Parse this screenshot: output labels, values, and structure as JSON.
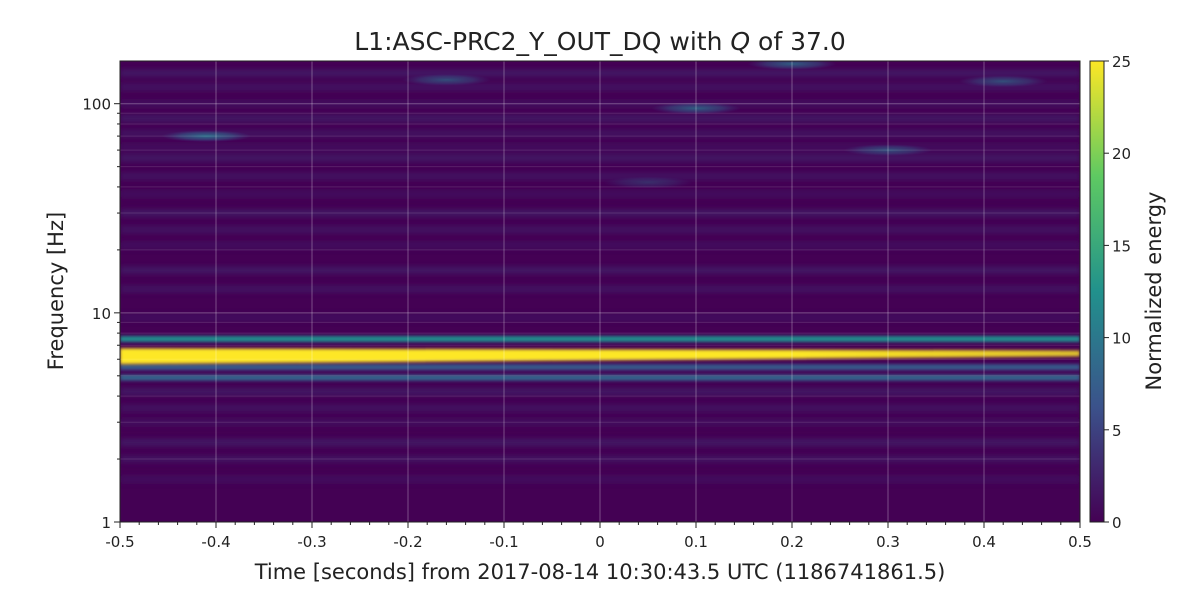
{
  "chart_data": {
    "type": "heatmap",
    "title": "L1:ASC-PRC2_Y_OUT_DQ with Q of 37.0",
    "title_parts": {
      "prefix": "L1:ASC-PRC2_Y_OUT_DQ with ",
      "italic": "Q",
      "suffix": " of 37.0"
    },
    "xlabel": "Time [seconds] from 2017-08-14 10:30:43.5 UTC (1186741861.5)",
    "ylabel": "Frequency [Hz]",
    "xlim": [
      -0.5,
      0.5
    ],
    "ylim": [
      1,
      160
    ],
    "yscale": "log",
    "grid": true,
    "x_ticks": [
      -0.5,
      -0.4,
      -0.3,
      -0.2,
      -0.1,
      0,
      0.1,
      0.2,
      0.3,
      0.4,
      0.5
    ],
    "x_tick_labels": [
      "-0.5",
      "-0.4",
      "-0.3",
      "-0.2",
      "-0.1",
      "0",
      "0.1",
      "0.2",
      "0.3",
      "0.4",
      "0.5"
    ],
    "y_ticks": [
      1,
      10,
      100
    ],
    "y_tick_labels": [
      "1",
      "10",
      "100"
    ],
    "colorbar": {
      "label": "Normalized energy",
      "range": [
        0,
        25
      ],
      "ticks": [
        0,
        5,
        10,
        15,
        20,
        25
      ],
      "tick_labels": [
        "0",
        "5",
        "10",
        "15",
        "20",
        "25"
      ],
      "colormap": [
        "#440154",
        "#3b528b",
        "#21918c",
        "#5ec962",
        "#fde725"
      ]
    },
    "features": [
      {
        "description": "dominant line",
        "f_start": 6.2,
        "f_end": 6.4,
        "t_start": -0.5,
        "t_end": 0.5,
        "energy": 25
      },
      {
        "description": "side band",
        "f": 7.5,
        "energy": 12
      },
      {
        "description": "side band",
        "f": 4.9,
        "energy": 8
      },
      {
        "description": "side band",
        "f": 5.5,
        "energy": 7
      }
    ],
    "background_bands_hz": [
      1.6,
      2.0,
      2.4,
      3.0,
      3.5,
      4.2,
      9.5,
      13,
      16,
      21,
      25,
      30,
      37,
      45,
      55,
      62,
      72,
      85,
      100,
      120,
      140
    ],
    "blobs": [
      {
        "t": -0.41,
        "f": 70,
        "energy": 7
      },
      {
        "t": 0.1,
        "f": 95,
        "energy": 6
      },
      {
        "t": 0.3,
        "f": 60,
        "energy": 5
      },
      {
        "t": 0.2,
        "f": 155,
        "energy": 6
      },
      {
        "t": -0.16,
        "f": 130,
        "energy": 5
      },
      {
        "t": 0.42,
        "f": 128,
        "energy": 5
      },
      {
        "t": 0.05,
        "f": 42,
        "energy": 3
      }
    ]
  }
}
